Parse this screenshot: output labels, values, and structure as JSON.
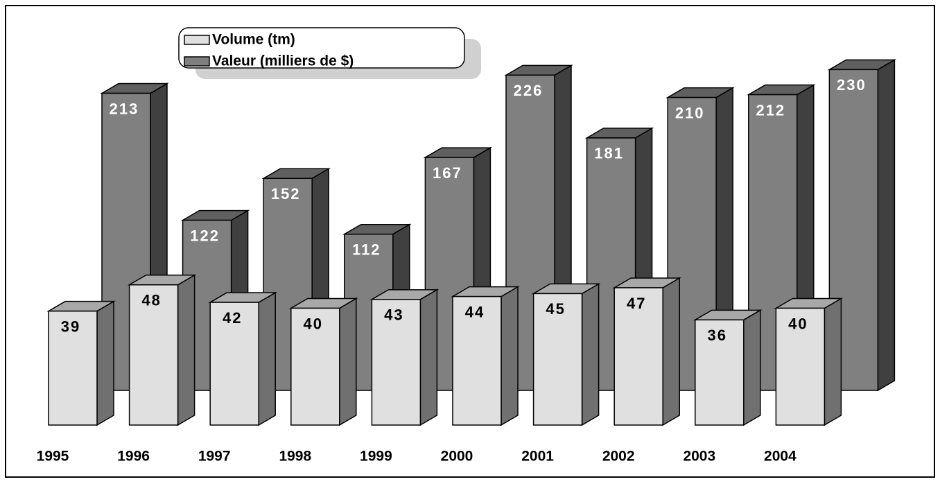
{
  "chart_data": {
    "type": "bar3d",
    "categories": [
      "1995",
      "1996",
      "1997",
      "1998",
      "1999",
      "2000",
      "2001",
      "2002",
      "2003",
      "2004"
    ],
    "series": [
      {
        "name": "Volume (tm)",
        "color": "#e0e0e0",
        "values": [
          39,
          48,
          42,
          40,
          43,
          44,
          45,
          47,
          36,
          40
        ]
      },
      {
        "name": "Valeur (milliers de $)",
        "color": "#808080",
        "axis": "y2",
        "values": [
          213,
          122,
          152,
          112,
          167,
          226,
          181,
          210,
          212,
          230
        ]
      }
    ],
    "ylim": [
      0,
      136
    ],
    "y2lim": [
      0,
      260
    ]
  }
}
